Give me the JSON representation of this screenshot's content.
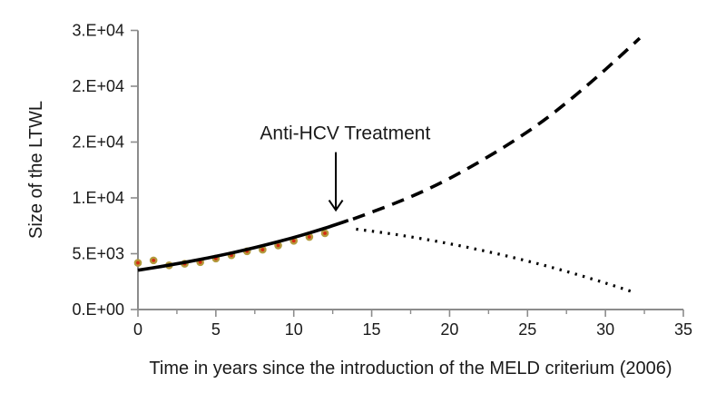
{
  "chart_data": {
    "type": "line",
    "title": "",
    "xlabel": "Time in years since the introduction of the MELD criterium (2006)",
    "ylabel": "Size of the LTWL",
    "xlim": [
      0,
      35
    ],
    "ylim": [
      0,
      25000
    ],
    "grid": false,
    "legend_position": "none",
    "x_major_ticks": [
      {
        "value": 0,
        "label": "0"
      },
      {
        "value": 5,
        "label": "5"
      },
      {
        "value": 10,
        "label": "10"
      },
      {
        "value": 15,
        "label": "15"
      },
      {
        "value": 20,
        "label": "20"
      },
      {
        "value": 25,
        "label": "25"
      },
      {
        "value": 30,
        "label": "30"
      },
      {
        "value": 35,
        "label": "35"
      }
    ],
    "x_minor_ticks": [
      2.5,
      7.5,
      12.5,
      17.5,
      22.5,
      27.5,
      32.5
    ],
    "y_ticks": [
      {
        "value": 0,
        "label": "0.E+00"
      },
      {
        "value": 5000,
        "label": "5.E+03"
      },
      {
        "value": 10000,
        "label": "1.E+04"
      },
      {
        "value": 15000,
        "label": "2.E+04"
      },
      {
        "value": 20000,
        "label": "2.E+04"
      },
      {
        "value": 25000,
        "label": "3.E+04"
      }
    ],
    "colors": {
      "axis": "#8c8c8c",
      "text": "#1a1a1a",
      "line": "#000000",
      "marker_fill": "#d62b12",
      "marker_stroke": "#b39a3d"
    },
    "annotation": {
      "text": "Anti-HCV Treatment",
      "text_x": 13.3,
      "text_y": 15800,
      "arrow_x": 12.7,
      "arrow_y_from": 14100,
      "arrow_y_to": 8900
    },
    "series": [
      {
        "name": "observed-waitlist-size",
        "type": "scatter",
        "x": [
          0,
          1,
          2,
          3,
          4,
          5,
          6,
          7,
          8,
          9,
          10,
          11,
          12
        ],
        "y": [
          4180,
          4400,
          3960,
          4100,
          4240,
          4570,
          4860,
          5220,
          5360,
          5740,
          6150,
          6500,
          6830
        ]
      },
      {
        "name": "fitted-trend",
        "type": "line",
        "style": "solid",
        "x": [
          0,
          1.5,
          3,
          4.5,
          6,
          7.5,
          9,
          10.5,
          12,
          13.5
        ],
        "y": [
          3520,
          3855,
          4222,
          4624,
          5064,
          5546,
          6074,
          6652,
          7285,
          7980
        ]
      },
      {
        "name": "projection-without-treatment",
        "type": "line",
        "style": "dashed",
        "x": [
          13.8,
          16,
          18,
          20,
          22,
          24,
          26,
          28,
          30,
          32.2
        ],
        "y": [
          8100,
          9250,
          10400,
          11750,
          13300,
          15000,
          16900,
          19100,
          21500,
          24300
        ]
      },
      {
        "name": "projection-with-treatment",
        "type": "line",
        "style": "dotted",
        "x": [
          14,
          16,
          18,
          20,
          22,
          24,
          26,
          28,
          30,
          31.8
        ],
        "y": [
          7200,
          6830,
          6395,
          5890,
          5320,
          4685,
          3980,
          3210,
          2370,
          1560
        ]
      }
    ]
  }
}
